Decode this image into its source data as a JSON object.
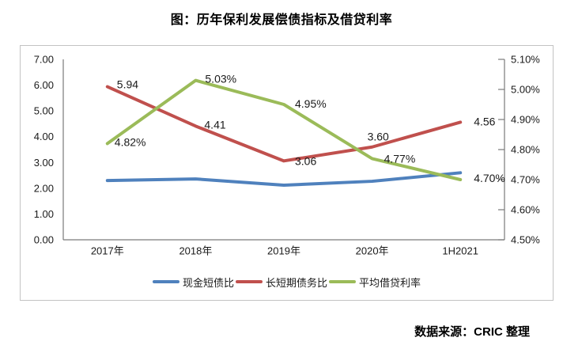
{
  "title": "图：历年保利发展偿债指标及借贷利率",
  "source": "数据来源：CRIC 整理",
  "colors": {
    "series_blue": "#4F81BD",
    "series_red": "#C0504D",
    "series_green": "#9BBB59",
    "axis_gray": "#7a7a7a",
    "frame_border": "#c3c3c3",
    "text_black": "#1a1a1a"
  },
  "chart_data": {
    "type": "line",
    "categories": [
      "2017年",
      "2018年",
      "2019年",
      "2020年",
      "1H2021"
    ],
    "left_axis": {
      "min": 0,
      "max": 7,
      "tick_step": 1,
      "tick_labels": [
        "0.00",
        "1.00",
        "2.00",
        "3.00",
        "4.00",
        "5.00",
        "6.00",
        "7.00"
      ]
    },
    "right_axis": {
      "min": 4.5,
      "max": 5.1,
      "tick_step": 0.1,
      "tick_labels": [
        "4.50%",
        "4.60%",
        "4.70%",
        "4.80%",
        "4.90%",
        "5.00%",
        "5.10%"
      ]
    },
    "series": [
      {
        "name": "现金短债比",
        "axis": "left",
        "color": "#4F81BD",
        "values": [
          2.3,
          2.36,
          2.12,
          2.27,
          2.6
        ],
        "data_labels": [
          "",
          "",
          "",
          "",
          ""
        ],
        "label_offsets": [
          [
            0,
            0
          ],
          [
            0,
            0
          ],
          [
            0,
            0
          ],
          [
            0,
            0
          ],
          [
            0,
            0
          ]
        ]
      },
      {
        "name": "长短期债务比",
        "axis": "left",
        "color": "#C0504D",
        "values": [
          5.94,
          4.41,
          3.06,
          3.6,
          4.56
        ],
        "data_labels": [
          "5.94",
          "4.41",
          "3.06",
          "3.60",
          "4.56"
        ],
        "label_offsets": [
          [
            12,
            -3
          ],
          [
            11,
            -2
          ],
          [
            14,
            0
          ],
          [
            -6,
            -13
          ],
          [
            17,
            -1
          ]
        ]
      },
      {
        "name": "平均借贷利率",
        "axis": "right",
        "color": "#9BBB59",
        "values": [
          4.82,
          5.03,
          4.95,
          4.77,
          4.7
        ],
        "data_labels": [
          "4.82%",
          "5.03%",
          "4.95%",
          "4.77%",
          "4.70%"
        ],
        "label_offsets": [
          [
            9,
            -2
          ],
          [
            12,
            -2
          ],
          [
            14,
            -1
          ],
          [
            15,
            0
          ],
          [
            17,
            -2
          ]
        ]
      }
    ],
    "grid": false,
    "legend_position": "bottom",
    "label_font_size": 14,
    "axis_font_size": 13
  }
}
